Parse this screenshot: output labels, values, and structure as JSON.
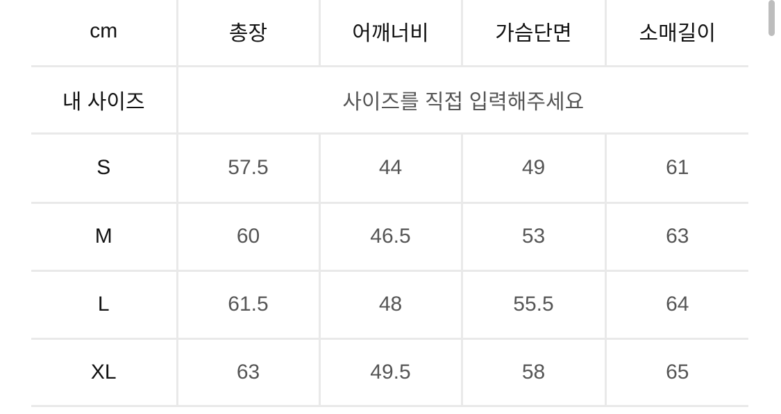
{
  "table": {
    "corner": "cm",
    "columns": [
      "총장",
      "어깨너비",
      "가슴단면",
      "소매길이"
    ],
    "my_size": {
      "label": "내 사이즈",
      "placeholder": "사이즈를 직접 입력해주세요"
    },
    "rows": [
      {
        "size": "S",
        "values": [
          "57.5",
          "44",
          "49",
          "61"
        ]
      },
      {
        "size": "M",
        "values": [
          "60",
          "46.5",
          "53",
          "63"
        ]
      },
      {
        "size": "L",
        "values": [
          "61.5",
          "48",
          "55.5",
          "64"
        ]
      },
      {
        "size": "XL",
        "values": [
          "63",
          "49.5",
          "58",
          "65"
        ]
      }
    ]
  }
}
